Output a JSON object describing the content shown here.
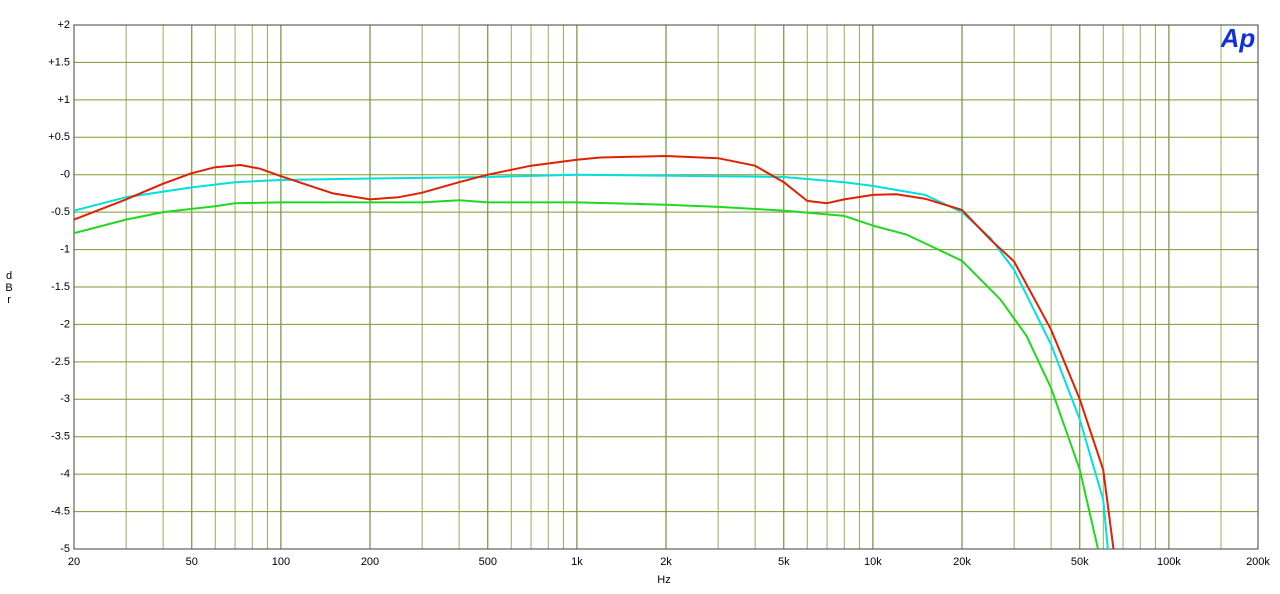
{
  "chart_data": {
    "type": "line",
    "xlabel": "Hz",
    "ylabel": "dBr",
    "logo": "Ap",
    "xscale": "log",
    "grid": true,
    "xlim": [
      20,
      200000
    ],
    "ylim": [
      -5,
      2
    ],
    "xticks": [
      20,
      50,
      100,
      200,
      500,
      {
        "value": 1000,
        "label": "1k"
      },
      {
        "value": 2000,
        "label": "2k"
      },
      {
        "value": 5000,
        "label": "5k"
      },
      {
        "value": 10000,
        "label": "10k"
      },
      {
        "value": 20000,
        "label": "20k"
      },
      {
        "value": 50000,
        "label": "50k"
      },
      {
        "value": 100000,
        "label": "100k"
      },
      {
        "value": 200000,
        "label": "200k"
      }
    ],
    "x_minor_ticks": [
      30,
      40,
      60,
      70,
      80,
      90,
      300,
      400,
      600,
      700,
      800,
      900,
      3000,
      4000,
      6000,
      7000,
      8000,
      9000,
      30000,
      40000,
      60000,
      70000,
      80000,
      90000,
      150000
    ],
    "yticks": [
      {
        "value": 2,
        "label": "+2"
      },
      {
        "value": 1.5,
        "label": "+1.5"
      },
      {
        "value": 1,
        "label": "+1"
      },
      {
        "value": 0.5,
        "label": "+0.5"
      },
      {
        "value": 0,
        "label": "-0"
      },
      -0.5,
      -1,
      -1.5,
      -2,
      -2.5,
      -3,
      -3.5,
      -4,
      -4.5,
      -5
    ],
    "series": [
      {
        "color": "#00e0e0",
        "x": [
          20,
          30,
          50,
          70,
          100,
          200,
          500,
          1000,
          5000,
          8000,
          10000,
          15000,
          20000,
          25000,
          30000,
          40000,
          50000,
          60000,
          62200
        ],
        "values": [
          -0.48,
          -0.3,
          -0.17,
          -0.1,
          -0.07,
          -0.05,
          -0.03,
          0,
          -0.03,
          -0.1,
          -0.15,
          -0.27,
          -0.5,
          -0.85,
          -1.27,
          -2.27,
          -3.27,
          -4.34,
          -5
        ]
      },
      {
        "color": "#20d820",
        "x": [
          20,
          30,
          40,
          60,
          70,
          100,
          200,
          300,
          400,
          500,
          1000,
          2000,
          3000,
          5000,
          8000,
          10000,
          13000,
          20000,
          27000,
          33000,
          40000,
          50000,
          57600
        ],
        "values": [
          -0.78,
          -0.6,
          -0.5,
          -0.42,
          -0.38,
          -0.37,
          -0.37,
          -0.37,
          -0.34,
          -0.37,
          -0.37,
          -0.4,
          -0.43,
          -0.48,
          -0.55,
          -0.68,
          -0.8,
          -1.15,
          -1.67,
          -2.15,
          -2.85,
          -3.94,
          -5
        ]
      },
      {
        "color": "#e02000",
        "x": [
          20,
          30,
          40,
          50,
          60,
          73,
          85,
          100,
          150,
          200,
          250,
          300,
          400,
          500,
          700,
          1000,
          1200,
          2000,
          3000,
          4000,
          5000,
          6000,
          7000,
          8000,
          10000,
          12000,
          15000,
          20000,
          25000,
          30000,
          40000,
          50000,
          60000,
          65000
        ],
        "values": [
          -0.6,
          -0.33,
          -0.12,
          0.02,
          0.1,
          0.13,
          0.08,
          -0.02,
          -0.25,
          -0.33,
          -0.3,
          -0.24,
          -0.1,
          0,
          0.12,
          0.2,
          0.23,
          0.25,
          0.22,
          0.12,
          -0.1,
          -0.35,
          -0.38,
          -0.33,
          -0.27,
          -0.26,
          -0.32,
          -0.47,
          -0.87,
          -1.16,
          -2.07,
          -3,
          -3.94,
          -5
        ]
      }
    ]
  }
}
